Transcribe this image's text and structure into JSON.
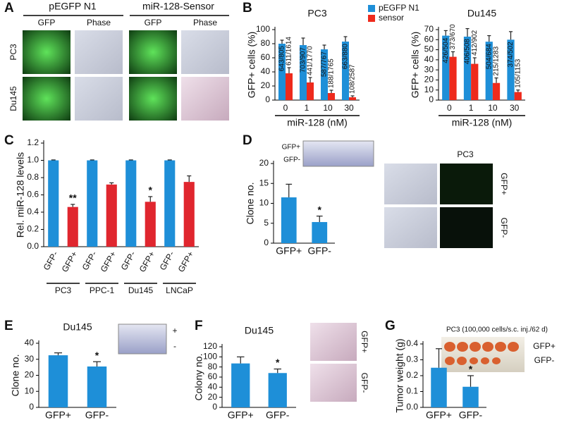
{
  "figure": {
    "panel_letters": [
      "A",
      "B",
      "C",
      "D",
      "E",
      "F",
      "G"
    ],
    "panel_a": {
      "groups": [
        "pEGFP N1",
        "miR-128-Sensor"
      ],
      "columns": [
        "GFP",
        "Phase",
        "GFP",
        "Phase"
      ],
      "rows": [
        "PC3",
        "Du145"
      ]
    },
    "panel_d": {
      "inset_labels": [
        "GFP+",
        "GFP-"
      ],
      "title": "PC3",
      "row_labels": [
        "GFP+",
        "GFP-"
      ]
    },
    "panel_e": {
      "inset_labels": [
        "+",
        "-"
      ]
    },
    "panel_f": {
      "row_labels": [
        "GFP+",
        "GFP-"
      ]
    },
    "panel_g": {
      "caption": "PC3 (100,000 cells/s.c. inj./62 d)",
      "inset_labels": [
        "GFP+",
        "GFP-"
      ]
    }
  },
  "chart_data": [
    {
      "type": "bar",
      "title": "PC3",
      "categories": [
        "0",
        "1",
        "10",
        "30"
      ],
      "x_label": "miR-128 (nM)",
      "y_label": "GFP+ cells (%)",
      "ylim": [
        0,
        100
      ],
      "yticks": [
        0,
        20,
        40,
        60,
        80,
        100
      ],
      "legend": "top-right",
      "series": [
        {
          "name": "pEGFP N1",
          "color": "#1e8fd8",
          "values": [
            80,
            78,
            72,
            83
          ],
          "errors": [
            5,
            10,
            6,
            7
          ],
          "counts": [
            "643/805",
            "703/907",
            "587/767",
            "663/880"
          ]
        },
        {
          "name": "sensor",
          "color": "#ee2a1c",
          "values": [
            38,
            25,
            10,
            4
          ],
          "errors": [
            8,
            7,
            4,
            2
          ],
          "counts": [
            "611/1614",
            "441/1770",
            "188/1765",
            "108/2587"
          ]
        }
      ]
    },
    {
      "type": "bar",
      "title": "Du145",
      "categories": [
        "0",
        "1",
        "10",
        "30"
      ],
      "x_label": "miR-128 (nM)",
      "y_label": "GFP+ cells (%)",
      "ylim": [
        0,
        70
      ],
      "yticks": [
        0,
        10,
        20,
        30,
        40,
        50,
        60,
        70
      ],
      "series": [
        {
          "color": "#1e8fd8",
          "values": [
            64,
            63,
            58,
            60
          ],
          "errors": [
            5,
            8,
            6,
            8
          ],
          "counts": [
            "426/504",
            "406/508",
            "504/684",
            "374/502"
          ]
        },
        {
          "color": "#ee2a1c",
          "values": [
            43,
            36,
            17,
            8
          ],
          "errors": [
            5,
            6,
            5,
            2
          ],
          "counts": [
            "373/670",
            "412/902",
            "215/1283",
            "105/1153"
          ]
        }
      ]
    },
    {
      "type": "bar",
      "y_label": "Rel. miR-128 levels",
      "categories": [
        "GFP-",
        "GFP+",
        "GFP-",
        "GFP+",
        "GFP-",
        "GFP+",
        "GFP-",
        "GFP+"
      ],
      "groups": [
        "PC3",
        "PPC-1",
        "Du145",
        "LNCaP"
      ],
      "values": [
        1.0,
        0.46,
        1.0,
        0.72,
        1.0,
        0.52,
        1.0,
        0.75
      ],
      "errors": [
        0.005,
        0.03,
        0.005,
        0.02,
        0.005,
        0.06,
        0.005,
        0.07
      ],
      "colors": [
        "#1e8fd8",
        "#e0262e",
        "#1e8fd8",
        "#e0262e",
        "#1e8fd8",
        "#e0262e",
        "#1e8fd8",
        "#e0262e"
      ],
      "significance": [
        null,
        "**",
        null,
        null,
        null,
        "*",
        null,
        null
      ],
      "ylim": [
        0,
        1.2
      ],
      "yticks": [
        {
          "value": 0,
          "label": "0.0"
        },
        {
          "value": 0.2,
          "label": "0.2"
        },
        {
          "value": 0.4,
          "label": "0.4"
        },
        {
          "value": 0.6,
          "label": "0.6"
        },
        {
          "value": 0.8,
          "label": "0.8"
        },
        {
          "value": 1,
          "label": "1.0"
        },
        {
          "value": 1.2,
          "label": "1.2"
        }
      ]
    },
    {
      "type": "bar",
      "y_label": "Clone no.",
      "categories": [
        "GFP+",
        "GFP-"
      ],
      "values": [
        11.5,
        5.3
      ],
      "errors": [
        3.3,
        1.5
      ],
      "color": "#1e8fd8",
      "significance": [
        null,
        "*"
      ],
      "ylim": [
        0,
        20
      ],
      "yticks": [
        0,
        5,
        10,
        15,
        20
      ]
    },
    {
      "type": "bar",
      "title": "Du145",
      "y_label": "Clone no.",
      "categories": [
        "GFP+",
        "GFP-"
      ],
      "values": [
        32.5,
        25.5
      ],
      "errors": [
        1.5,
        3
      ],
      "color": "#1e8fd8",
      "significance": [
        null,
        "*"
      ],
      "ylim": [
        0,
        40
      ],
      "yticks": [
        0,
        10,
        20,
        30,
        40
      ]
    },
    {
      "type": "bar",
      "title": "Du145",
      "y_label": "Colony no.",
      "categories": [
        "GFP+",
        "GFP-"
      ],
      "values": [
        87,
        68
      ],
      "errors": [
        13,
        8
      ],
      "color": "#1e8fd8",
      "significance": [
        null,
        "*"
      ],
      "ylim": [
        0,
        120
      ],
      "yticks": [
        0,
        20,
        40,
        60,
        80,
        100,
        120
      ]
    },
    {
      "type": "bar",
      "y_label": "Tumor weight (g)",
      "categories": [
        "GFP+",
        "GFP-"
      ],
      "values": [
        0.25,
        0.13
      ],
      "errors": [
        0.12,
        0.07
      ],
      "color": "#1e8fd8",
      "significance": [
        null,
        "*"
      ],
      "ylim": [
        0,
        0.4
      ],
      "yticks": [
        {
          "value": 0,
          "label": "0.0"
        },
        {
          "value": 0.1,
          "label": "0.1"
        },
        {
          "value": 0.2,
          "label": "0.2"
        },
        {
          "value": 0.3,
          "label": "0.3"
        },
        {
          "value": 0.4,
          "label": "0.4"
        }
      ]
    }
  ]
}
